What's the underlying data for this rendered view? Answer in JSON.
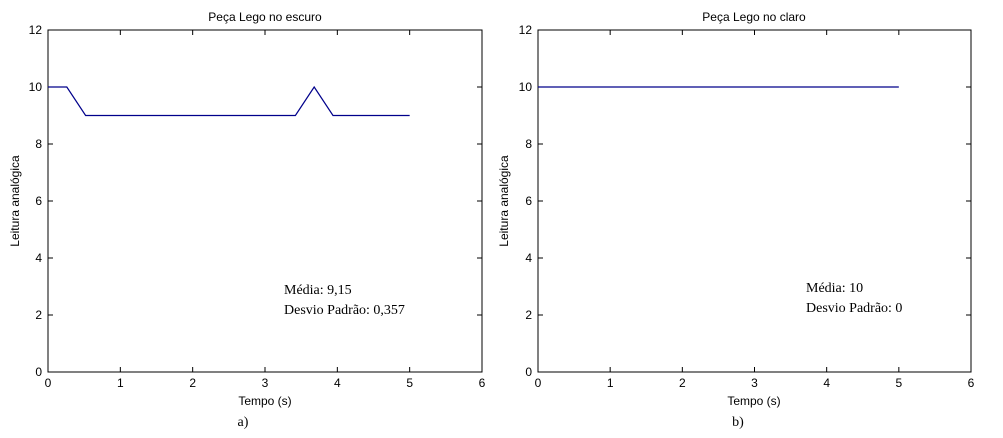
{
  "chart_data": [
    {
      "type": "line",
      "title": "Peça Lego no escuro",
      "xlabel": "Tempo (s)",
      "ylabel": "Leitura analógica",
      "xlim": [
        0,
        6
      ],
      "ylim": [
        0,
        12
      ],
      "xticks": [
        0,
        1,
        2,
        3,
        4,
        5,
        6
      ],
      "yticks": [
        0,
        2,
        4,
        6,
        8,
        10,
        12
      ],
      "grid": false,
      "series": [
        {
          "color": "#00008b",
          "x": [
            0,
            0.26,
            0.52,
            3.42,
            3.68,
            3.94,
            5.0
          ],
          "y": [
            10,
            10,
            9,
            9,
            10,
            9,
            9
          ]
        }
      ],
      "annotations": [
        "Média: 9,15",
        "Desvio Padrão: 0,357"
      ],
      "sublabel": "a)"
    },
    {
      "type": "line",
      "title": "Peça Lego no claro",
      "xlabel": "Tempo (s)",
      "ylabel": "Leitura analógica",
      "xlim": [
        0,
        6
      ],
      "ylim": [
        0,
        12
      ],
      "xticks": [
        0,
        1,
        2,
        3,
        4,
        5,
        6
      ],
      "yticks": [
        0,
        2,
        4,
        6,
        8,
        10,
        12
      ],
      "grid": false,
      "series": [
        {
          "color": "#00008b",
          "x": [
            0,
            5.0
          ],
          "y": [
            10,
            10
          ]
        }
      ],
      "annotations": [
        "Média: 10",
        "Desvio Padrão: 0"
      ],
      "sublabel": "b)"
    }
  ]
}
